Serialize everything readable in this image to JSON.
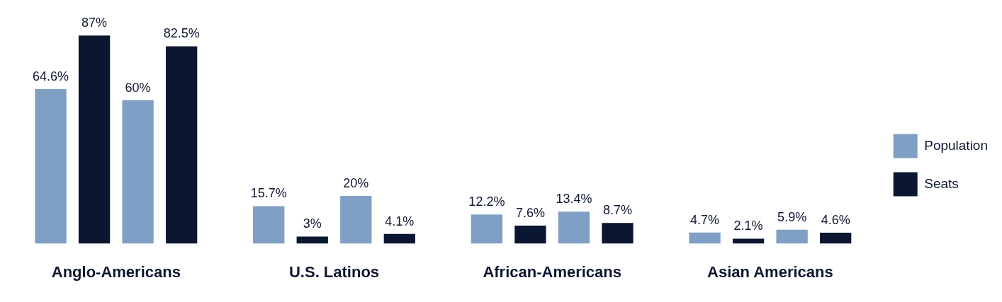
{
  "chart_data": {
    "type": "bar",
    "categories": [
      "Anglo-Americans",
      "U.S. Latinos",
      "African-Americans",
      "Asian Americans"
    ],
    "series": [
      {
        "name": "Population",
        "color": "#7f9fc4",
        "values": [
          64.6,
          15.7,
          12.2,
          4.7
        ],
        "value_labels": [
          "64.6%",
          "15.7%",
          "12.2%",
          "4.7%"
        ]
      },
      {
        "name": "Seats",
        "color": "#0b1630",
        "values": [
          87,
          3,
          7.6,
          2.1
        ],
        "value_labels": [
          "87%",
          "3%",
          "7.6%",
          "2.1%"
        ]
      },
      {
        "color": "#7f9fc4",
        "values": [
          60,
          20,
          13.4,
          5.9
        ],
        "value_labels": [
          "60%",
          "20%",
          "13.4%",
          "5.9%"
        ]
      },
      {
        "color": "#0b1630",
        "values": [
          82.5,
          4.1,
          8.7,
          4.6
        ],
        "value_labels": [
          "82.5%",
          "4.1%",
          "8.7%",
          "4.6%"
        ]
      }
    ],
    "legend": "right",
    "tick_labels": "x"
  }
}
